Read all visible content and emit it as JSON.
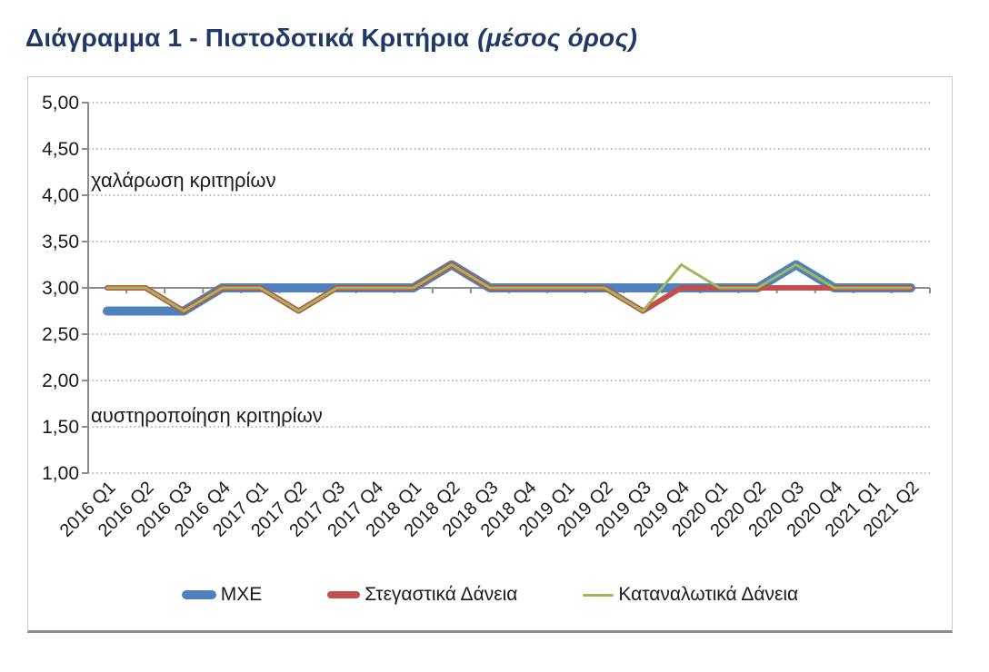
{
  "title": {
    "main": "Διάγραμμα 1 - Πιστοδοτικά Κριτήρια",
    "suffix": "(μέσος όρος)"
  },
  "colors": {
    "title_navy": "#1F3864",
    "axis_gray": "#8C8C8C",
    "grid_gray": "#A6A6A6",
    "label_black": "#1A1A1A",
    "series_blue": "#4F81BD",
    "series_red": "#C0504D",
    "series_green": "#9BBB59"
  },
  "chart_data": {
    "type": "line",
    "title": "Διάγραμμα 1 - Πιστοδοτικά Κριτήρια (μέσος όρος)",
    "categories": [
      "2016 Q1",
      "2016 Q2",
      "2016 Q3",
      "2016 Q4",
      "2017 Q1",
      "2017 Q2",
      "2017 Q3",
      "2017 Q4",
      "2018 Q1",
      "2018 Q2",
      "2018 Q3",
      "2018 Q4",
      "2019 Q1",
      "2019 Q2",
      "2019 Q3",
      "2019 Q4",
      "2020 Q1",
      "2020 Q2",
      "2020 Q3",
      "2020 Q4",
      "2021 Q1",
      "2021 Q2"
    ],
    "series": [
      {
        "name": "ΜΧΕ",
        "color": "#4F81BD",
        "line_width": 10,
        "values": [
          2.75,
          2.75,
          2.75,
          3.0,
          3.0,
          3.0,
          3.0,
          3.0,
          3.0,
          3.25,
          3.0,
          3.0,
          3.0,
          3.0,
          3.0,
          3.0,
          3.0,
          3.0,
          3.25,
          3.0,
          3.0,
          3.0
        ]
      },
      {
        "name": "Στεγαστικά Δάνεια",
        "color": "#C0504D",
        "line_width": 6,
        "values": [
          3.0,
          3.0,
          2.75,
          3.0,
          3.0,
          2.75,
          3.0,
          3.0,
          3.0,
          3.25,
          3.0,
          3.0,
          3.0,
          3.0,
          2.75,
          3.0,
          3.0,
          3.0,
          3.0,
          3.0,
          3.0,
          3.0
        ]
      },
      {
        "name": "Καταναλωτικά Δάνεια",
        "color": "#9BBB59",
        "line_width": 3,
        "values": [
          3.0,
          3.0,
          2.75,
          3.0,
          3.0,
          2.75,
          3.0,
          3.0,
          3.0,
          3.25,
          3.0,
          3.0,
          3.0,
          3.0,
          2.75,
          3.25,
          3.0,
          3.0,
          3.25,
          3.0,
          3.0,
          3.0
        ]
      }
    ],
    "ylim": [
      1.0,
      5.0
    ],
    "ytick_step": 0.5,
    "ytick_labels": [
      "5,00",
      "4,50",
      "4,00",
      "3,50",
      "3,00",
      "2,50",
      "2,00",
      "1,50",
      "1,00"
    ],
    "x_axis_crosses_at": 3.0,
    "grid": "horizontal dotted",
    "legend_position": "bottom",
    "annotations": [
      {
        "text": "χαλάρωση κριτηρίων",
        "y_value": 4.09,
        "align": "left"
      },
      {
        "text": "αυστηροποίηση κριτηρίων",
        "y_value": 1.55,
        "align": "left"
      }
    ]
  }
}
